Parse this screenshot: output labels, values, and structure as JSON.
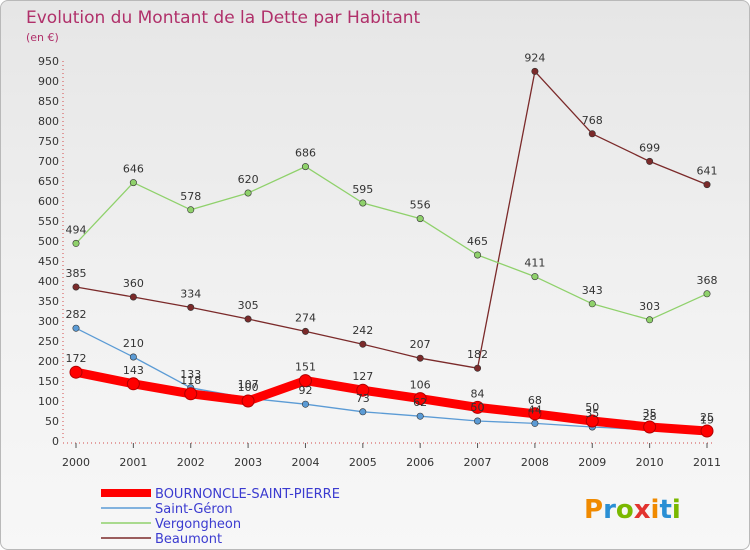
{
  "title": "Evolution du Montant de la Dette par Habitant",
  "unit": "(en €)",
  "logo": "Proxiti",
  "chart_data": {
    "type": "line",
    "x": [
      "2000",
      "2001",
      "2002",
      "2003",
      "2004",
      "2005",
      "2006",
      "2007",
      "2008",
      "2009",
      "2010",
      "2011"
    ],
    "ylim": [
      0,
      950
    ],
    "yticks": [
      0,
      50,
      100,
      150,
      200,
      250,
      300,
      350,
      400,
      450,
      500,
      550,
      600,
      650,
      700,
      750,
      800,
      850,
      900,
      950
    ],
    "grid": false,
    "legend_position": "bottom-left",
    "series": [
      {
        "name": "BOURNONCLE-SAINT-PIERRE",
        "color": "#ff0000",
        "values": [
          172,
          143,
          118,
          100,
          151,
          127,
          106,
          84,
          68,
          50,
          35,
          25
        ],
        "labels": [
          "172",
          "143",
          "118",
          "100",
          "151",
          "127",
          "106",
          "84",
          "68",
          "50",
          "35",
          "25"
        ]
      },
      {
        "name": "Saint-Géron",
        "color": "#5b9bd5",
        "values": [
          282,
          210,
          133,
          107,
          92,
          73,
          62,
          50,
          44,
          35,
          28,
          19
        ],
        "labels": [
          "282",
          "210",
          "133",
          "107",
          "92",
          "73",
          "62",
          "50",
          "44",
          "35",
          "28",
          "19"
        ]
      },
      {
        "name": "Vergongheon",
        "color": "#8fd16b",
        "values": [
          494,
          646,
          578,
          620,
          686,
          595,
          556,
          465,
          411,
          343,
          303,
          368
        ],
        "labels": [
          "494",
          "646",
          "578",
          "620",
          "686",
          "595",
          "556",
          "465",
          "411",
          "343",
          "303",
          "368"
        ]
      },
      {
        "name": "Beaumont",
        "color": "#7b2a2a",
        "values": [
          385,
          360,
          334,
          305,
          274,
          242,
          207,
          182,
          924,
          768,
          699,
          641
        ],
        "labels": [
          "385",
          "360",
          "334",
          "305",
          "274",
          "242",
          "207",
          "182",
          "924",
          "768",
          "699",
          "641"
        ]
      }
    ]
  }
}
